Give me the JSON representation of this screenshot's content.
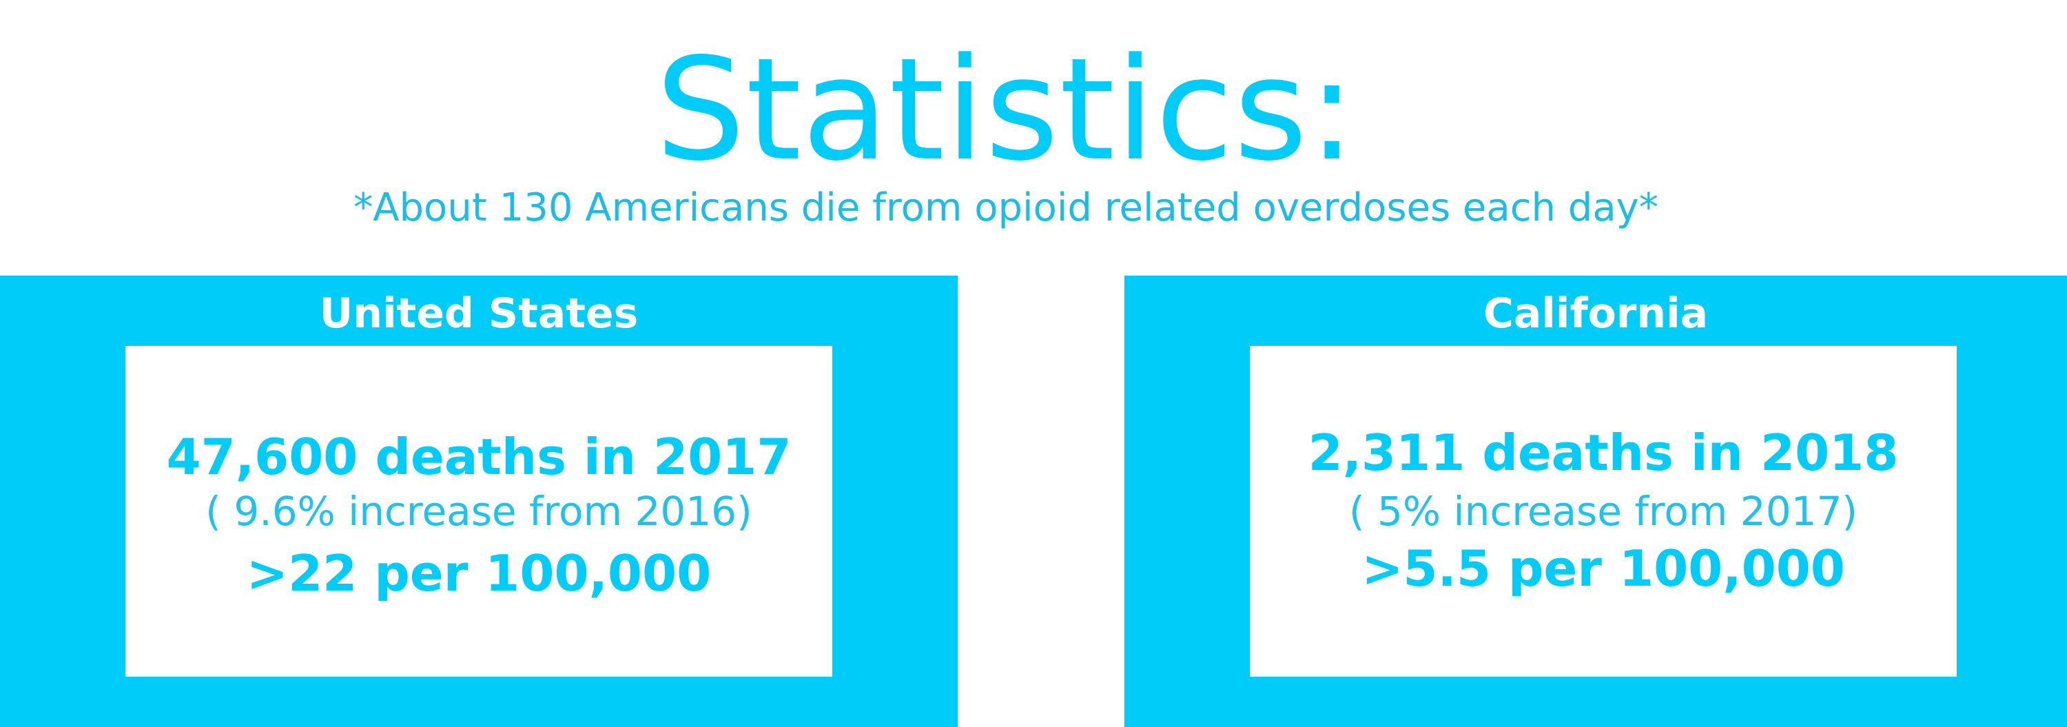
{
  "header": {
    "title": "Statistics:",
    "subtitle": "*About 130 Americans die from opioid related overdoses each day*"
  },
  "panels": [
    {
      "title": "United States",
      "main": "47,600 deaths in 2017",
      "sub": "( 9.6% increase from 2016)",
      "rate": ">22 per 100,000"
    },
    {
      "title": "California",
      "main": "2,311 deaths in 2018",
      "sub": "( 5% increase from 2017)",
      "rate": ">5.5 per 100,000"
    }
  ],
  "colors": {
    "accent": "#00ccf9",
    "background": "#ffffff",
    "panel_text": "#ffffff"
  }
}
